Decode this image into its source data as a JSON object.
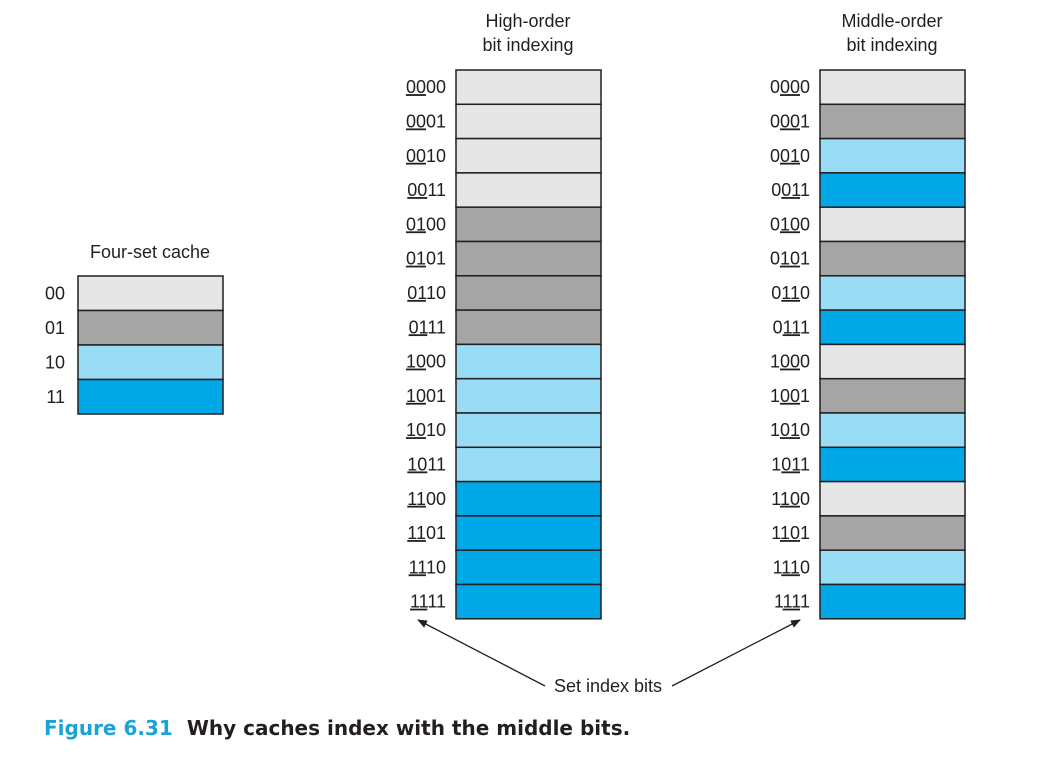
{
  "colors": {
    "set_00": "#e6e6e6",
    "set_01": "#a6a5a5",
    "set_10": "#99dcf5",
    "set_11": "#00a8e8",
    "caption_number": "#1aa3d6"
  },
  "four_set_cache": {
    "title": "Four-set cache",
    "sets": [
      {
        "label": "00",
        "set": "00"
      },
      {
        "label": "01",
        "set": "01"
      },
      {
        "label": "10",
        "set": "10"
      },
      {
        "label": "11",
        "set": "11"
      }
    ]
  },
  "high_order": {
    "title_line1": "High-order",
    "title_line2": "bit indexing",
    "underline": "first-two-bits",
    "rows": [
      {
        "addr": "0000",
        "set": "00"
      },
      {
        "addr": "0001",
        "set": "00"
      },
      {
        "addr": "0010",
        "set": "00"
      },
      {
        "addr": "0011",
        "set": "00"
      },
      {
        "addr": "0100",
        "set": "01"
      },
      {
        "addr": "0101",
        "set": "01"
      },
      {
        "addr": "0110",
        "set": "01"
      },
      {
        "addr": "0111",
        "set": "01"
      },
      {
        "addr": "1000",
        "set": "10"
      },
      {
        "addr": "1001",
        "set": "10"
      },
      {
        "addr": "1010",
        "set": "10"
      },
      {
        "addr": "1011",
        "set": "10"
      },
      {
        "addr": "1100",
        "set": "11"
      },
      {
        "addr": "1101",
        "set": "11"
      },
      {
        "addr": "1110",
        "set": "11"
      },
      {
        "addr": "1111",
        "set": "11"
      }
    ]
  },
  "middle_order": {
    "title_line1": "Middle-order",
    "title_line2": "bit indexing",
    "underline": "middle-two-bits",
    "rows": [
      {
        "addr": "0000",
        "set": "00"
      },
      {
        "addr": "0001",
        "set": "01"
      },
      {
        "addr": "0010",
        "set": "10"
      },
      {
        "addr": "0011",
        "set": "11"
      },
      {
        "addr": "0100",
        "set": "00"
      },
      {
        "addr": "0101",
        "set": "01"
      },
      {
        "addr": "0110",
        "set": "10"
      },
      {
        "addr": "0111",
        "set": "11"
      },
      {
        "addr": "1000",
        "set": "00"
      },
      {
        "addr": "1001",
        "set": "01"
      },
      {
        "addr": "1010",
        "set": "10"
      },
      {
        "addr": "1011",
        "set": "11"
      },
      {
        "addr": "1100",
        "set": "00"
      },
      {
        "addr": "1101",
        "set": "01"
      },
      {
        "addr": "1110",
        "set": "10"
      },
      {
        "addr": "1111",
        "set": "11"
      }
    ]
  },
  "annotation": {
    "set_index_bits": "Set index bits"
  },
  "caption": {
    "number": "Figure 6.31",
    "text": "Why caches index with the middle bits."
  }
}
